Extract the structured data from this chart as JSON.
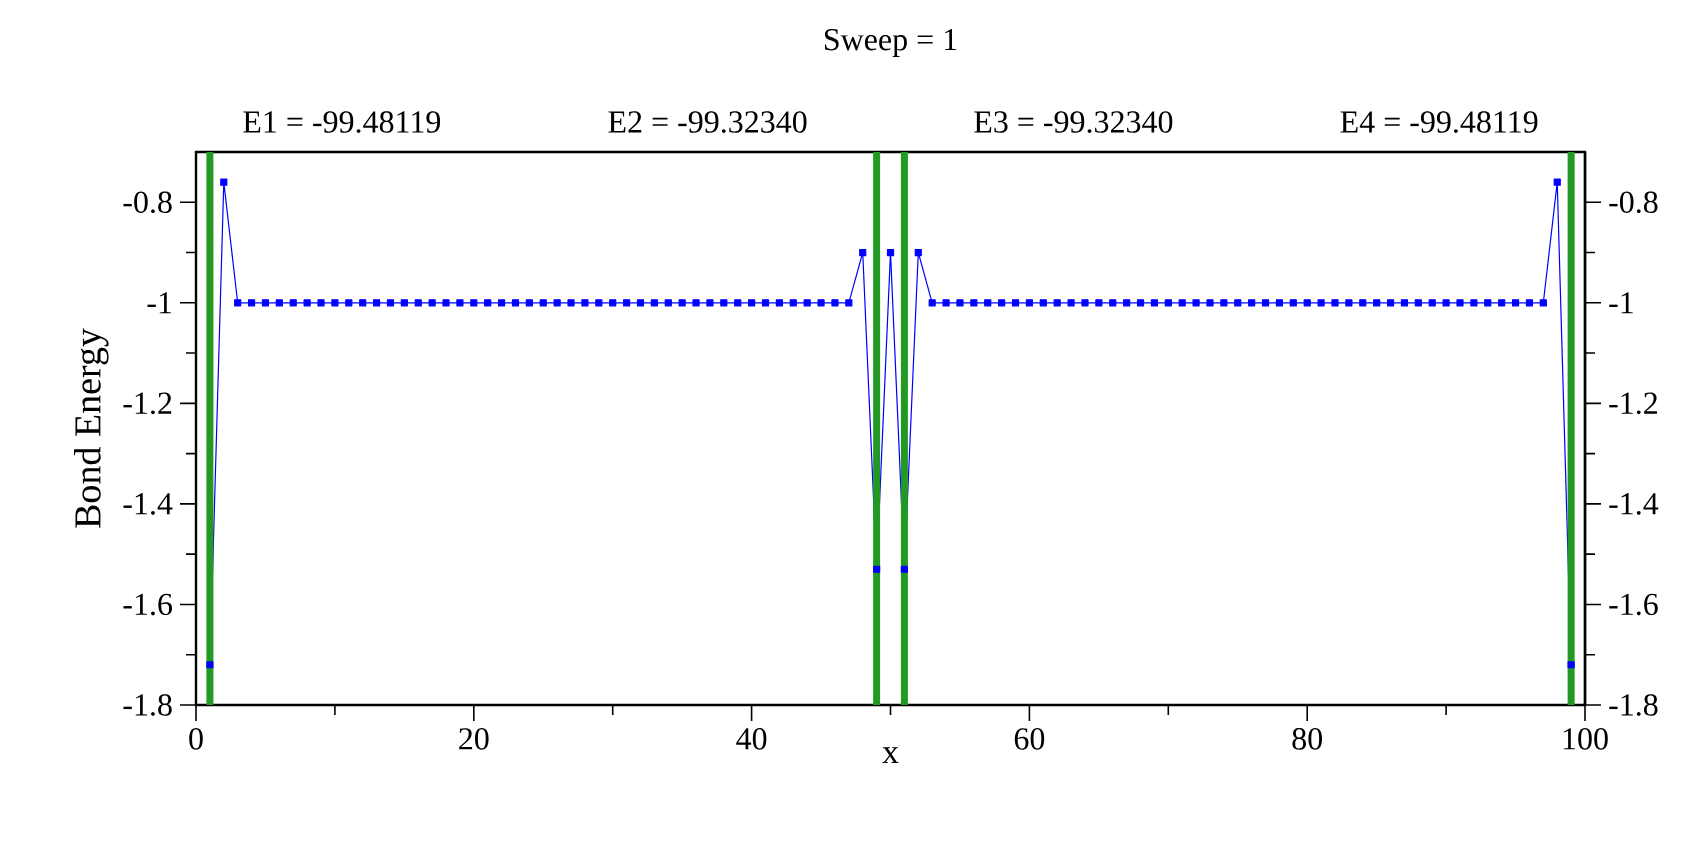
{
  "chart_data": {
    "type": "line",
    "title": "Sweep = 1",
    "xlabel": "x",
    "ylabel": "Bond Energy",
    "annotations": [
      "E1 = -99.48119",
      "E2 = -99.32340",
      "E3 = -99.32340",
      "E4 = -99.48119"
    ],
    "x": [
      1,
      2,
      3,
      4,
      5,
      6,
      7,
      8,
      9,
      10,
      11,
      12,
      13,
      14,
      15,
      16,
      17,
      18,
      19,
      20,
      21,
      22,
      23,
      24,
      25,
      26,
      27,
      28,
      29,
      30,
      31,
      32,
      33,
      34,
      35,
      36,
      37,
      38,
      39,
      40,
      41,
      42,
      43,
      44,
      45,
      46,
      47,
      48,
      49,
      50,
      51,
      52,
      53,
      54,
      55,
      56,
      57,
      58,
      59,
      60,
      61,
      62,
      63,
      64,
      65,
      66,
      67,
      68,
      69,
      70,
      71,
      72,
      73,
      74,
      75,
      76,
      77,
      78,
      79,
      80,
      81,
      82,
      83,
      84,
      85,
      86,
      87,
      88,
      89,
      90,
      91,
      92,
      93,
      94,
      95,
      96,
      97,
      98,
      99
    ],
    "series": [
      {
        "color": "#0000ff",
        "values": [
          -1.72,
          -0.76,
          -1,
          -1,
          -1,
          -1,
          -1,
          -1,
          -1,
          -1,
          -1,
          -1,
          -1,
          -1,
          -1,
          -1,
          -1,
          -1,
          -1,
          -1,
          -1,
          -1,
          -1,
          -1,
          -1,
          -1,
          -1,
          -1,
          -1,
          -1,
          -1,
          -1,
          -1,
          -1,
          -1,
          -1,
          -1,
          -1,
          -1,
          -1,
          -1,
          -1,
          -1,
          -1,
          -1,
          -1,
          -1,
          -0.9,
          -1.53,
          -0.9,
          -1.53,
          -0.9,
          -1,
          -1,
          -1,
          -1,
          -1,
          -1,
          -1,
          -1,
          -1,
          -1,
          -1,
          -1,
          -1,
          -1,
          -1,
          -1,
          -1,
          -1,
          -1,
          -1,
          -1,
          -1,
          -1,
          -1,
          -1,
          -1,
          -1,
          -1,
          -1,
          -1,
          -1,
          -1,
          -1,
          -1,
          -1,
          -1,
          -1,
          -1,
          -1,
          -1,
          -1,
          -1,
          -1,
          -1,
          -1,
          -0.76,
          -1.72
        ]
      }
    ],
    "marker": "square",
    "line_style": "solid",
    "xlim": [
      0,
      100
    ],
    "xticks": [
      0,
      20,
      40,
      60,
      80,
      100
    ],
    "ylim": [
      -1.8,
      -0.7
    ],
    "yticks": [
      -1.8,
      -1.6,
      -1.4,
      -1.2,
      -1,
      -0.8
    ],
    "y2lim": [
      -1.8,
      -0.7
    ],
    "y2ticks": [
      -1.8,
      -1.6,
      -1.4,
      -1.2,
      -1,
      -0.8
    ],
    "ref_lines": [
      {
        "axis": "x",
        "value": 1,
        "color": "#229922"
      },
      {
        "axis": "x",
        "value": 49,
        "color": "#229922"
      },
      {
        "axis": "x",
        "value": 51,
        "color": "#229922"
      },
      {
        "axis": "x",
        "value": 99,
        "color": "#229922"
      }
    ]
  }
}
